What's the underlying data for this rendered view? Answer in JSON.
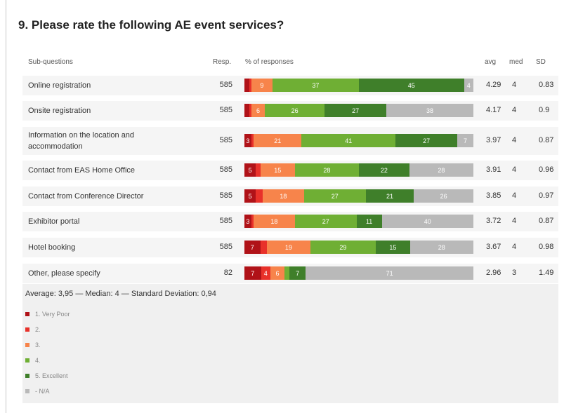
{
  "question_title": "9.  Please rate the following AE event services?",
  "headers": {
    "sub": "Sub-questions",
    "resp": "Resp.",
    "pct": "% of responses",
    "avg": "avg",
    "med": "med",
    "sd": "SD"
  },
  "summary": "Average: 3,95 — Median: 4 — Standard Deviation: 0,94",
  "colors": [
    "#b01218",
    "#e8312a",
    "#f7844b",
    "#6faf34",
    "#3f7f2a",
    "#b9b9b9"
  ],
  "legend": [
    "1. Very Poor",
    "2.",
    "3.",
    "4.",
    "5. Excellent",
    "- N/A"
  ],
  "chart_data": {
    "type": "bar",
    "stacked": true,
    "xlim": [
      0,
      100
    ],
    "categories": [
      "Online registration",
      "Onsite registration",
      "Information on the location and accommodation",
      "Contact from EAS Home Office",
      "Contact from Conference Director",
      "Exhibitor portal",
      "Hotel booking",
      "Other, please specify"
    ],
    "responses": [
      "585",
      "585",
      "585",
      "585",
      "585",
      "585",
      "585",
      "82"
    ],
    "series": [
      {
        "name": "1. Very Poor",
        "values": [
          2,
          2,
          3,
          5,
          5,
          3,
          7,
          7
        ]
      },
      {
        "name": "2.",
        "values": [
          1,
          1,
          1,
          2,
          3,
          1,
          3,
          4
        ]
      },
      {
        "name": "3.",
        "values": [
          9,
          6,
          21,
          15,
          18,
          18,
          19,
          6
        ]
      },
      {
        "name": "4.",
        "values": [
          37,
          26,
          41,
          28,
          27,
          27,
          29,
          2
        ]
      },
      {
        "name": "5. Excellent",
        "values": [
          45,
          27,
          27,
          22,
          21,
          11,
          15,
          7
        ]
      },
      {
        "name": "- N/A",
        "values": [
          4,
          38,
          7,
          28,
          26,
          40,
          28,
          71
        ]
      }
    ],
    "labels": [
      [
        "",
        "",
        "9",
        "37",
        "45",
        "4"
      ],
      [
        "",
        "",
        "6",
        "26",
        "27",
        "38"
      ],
      [
        "3",
        "",
        "21",
        "41",
        "27",
        "7"
      ],
      [
        "5",
        "",
        "15",
        "28",
        "22",
        "28"
      ],
      [
        "5",
        "",
        "18",
        "27",
        "21",
        "26"
      ],
      [
        "3",
        "",
        "18",
        "27",
        "11",
        "40"
      ],
      [
        "7",
        "",
        "19",
        "29",
        "15",
        "28"
      ],
      [
        "7",
        "4",
        "6",
        "",
        "7",
        "71"
      ]
    ],
    "avg": [
      "4.29",
      "4.17",
      "3.97",
      "3.91",
      "3.85",
      "3.72",
      "3.67",
      "2.96"
    ],
    "med": [
      "4",
      "4",
      "4",
      "4",
      "4",
      "4",
      "4",
      "3"
    ],
    "sd": [
      "0.83",
      "0.9",
      "0.87",
      "0.96",
      "0.97",
      "0.87",
      "0.98",
      "1.49"
    ]
  }
}
